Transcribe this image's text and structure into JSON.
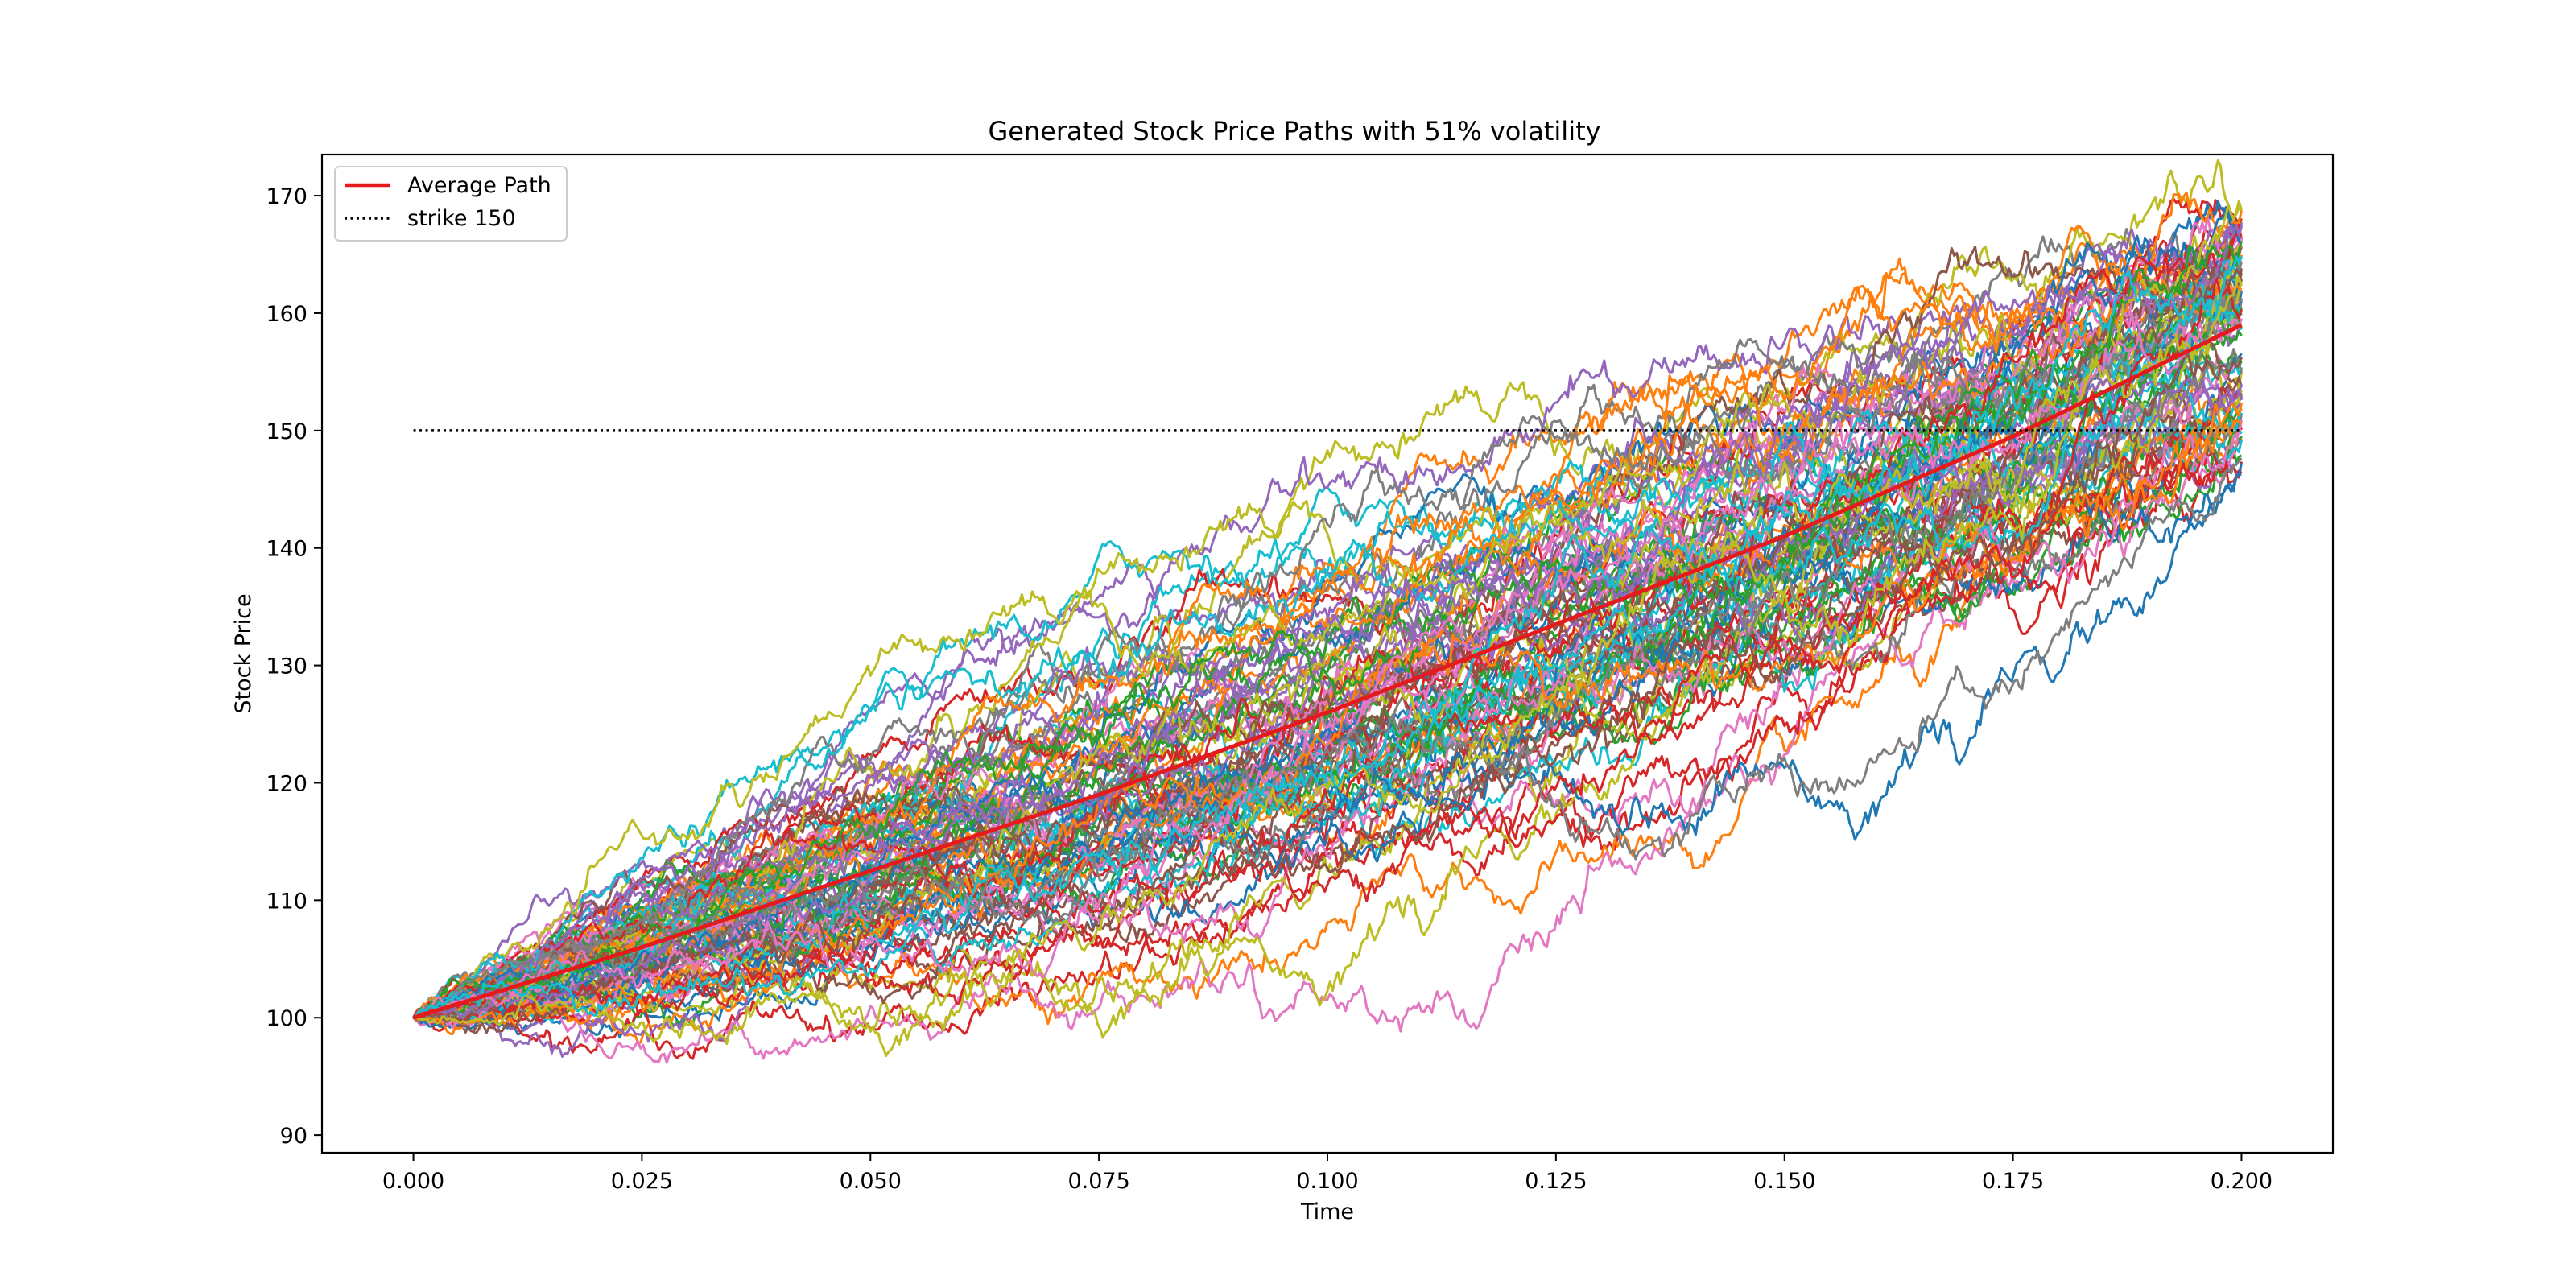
{
  "chart_data": {
    "type": "line",
    "title": "Generated Stock Price Paths with 51% volatility",
    "xlabel": "Time",
    "ylabel": "Stock Price",
    "xlim": [
      -0.01,
      0.21
    ],
    "ylim": [
      88.5,
      173.5
    ],
    "x_ticks": [
      "0.000",
      "0.025",
      "0.050",
      "0.075",
      "0.100",
      "0.125",
      "0.150",
      "0.175",
      "0.200"
    ],
    "x_tick_values": [
      0,
      0.025,
      0.05,
      0.075,
      0.1,
      0.125,
      0.15,
      0.175,
      0.2
    ],
    "y_ticks": [
      "90",
      "100",
      "110",
      "120",
      "130",
      "140",
      "150",
      "160",
      "170"
    ],
    "y_tick_values": [
      90,
      100,
      110,
      120,
      130,
      140,
      150,
      160,
      170
    ],
    "grid": false,
    "legend_position": "top-left",
    "simulated_paths": {
      "count": 100,
      "start_value": 100,
      "time_start": 0,
      "time_end": 0.2,
      "end_range": [
        146,
        169
      ],
      "colors": [
        "#1f77b4",
        "#ff7f0e",
        "#2ca02c",
        "#d62728",
        "#9467bd",
        "#8c564b",
        "#e377c2",
        "#7f7f7f",
        "#bcbd22",
        "#17becf"
      ]
    },
    "series": [
      {
        "name": "Average Path",
        "color": "#e41a1c",
        "style": "solid",
        "x": [
          0,
          0.025,
          0.05,
          0.075,
          0.1,
          0.125,
          0.15,
          0.175,
          0.2
        ],
        "values": [
          100,
          106,
          112.5,
          119,
          126,
          133.5,
          141,
          149.5,
          159
        ]
      },
      {
        "name": "strike 150",
        "color": "#000000",
        "style": "dotted",
        "x": [
          0,
          0.2
        ],
        "values": [
          150,
          150
        ]
      }
    ]
  }
}
